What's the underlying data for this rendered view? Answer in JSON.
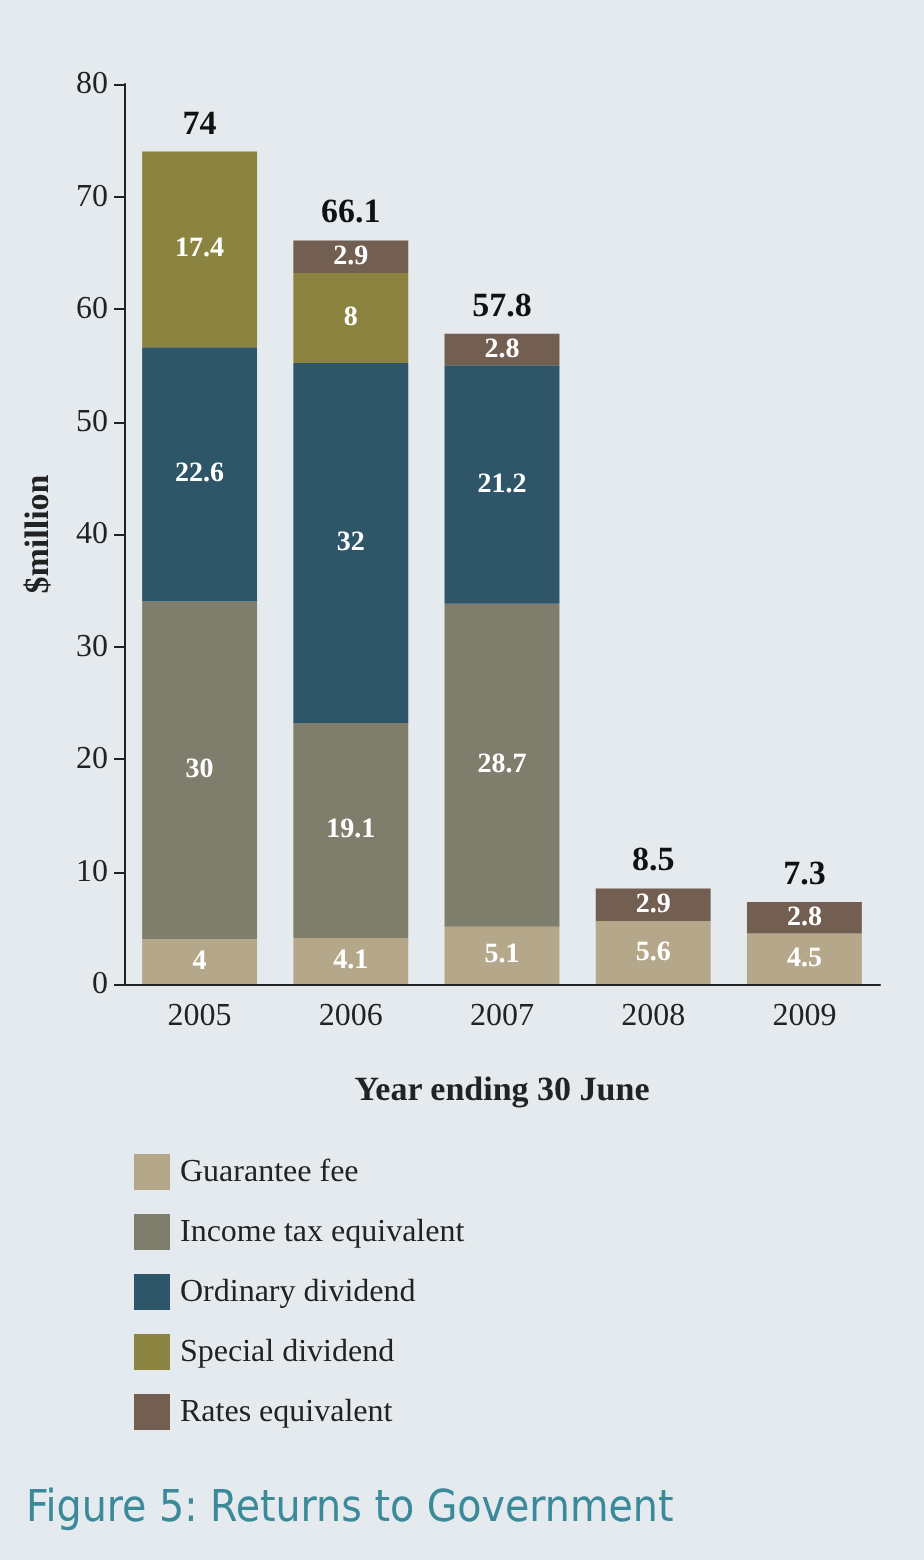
{
  "chart_data": {
    "type": "bar",
    "stacked": true,
    "title": "Figure 5: Returns to Government",
    "xlabel": "Year ending 30 June",
    "ylabel": "$million",
    "categories": [
      "2005",
      "2006",
      "2007",
      "2008",
      "2009"
    ],
    "series": [
      {
        "name": "Guarantee fee",
        "color": "#b5a88a",
        "values": [
          4,
          4.1,
          5.1,
          5.6,
          4.5
        ]
      },
      {
        "name": "Income tax equivalent",
        "color": "#7f7d6c",
        "values": [
          30,
          19.1,
          28.7,
          null,
          null
        ]
      },
      {
        "name": "Ordinary dividend",
        "color": "#2e5568",
        "values": [
          22.6,
          32,
          21.2,
          null,
          null
        ]
      },
      {
        "name": "Special dividend",
        "color": "#8b8440",
        "values": [
          17.4,
          8,
          null,
          null,
          null
        ]
      },
      {
        "name": "Rates equivalent",
        "color": "#735f52",
        "values": [
          null,
          2.9,
          2.8,
          2.9,
          2.8
        ]
      }
    ],
    "ylim": [
      0,
      80
    ],
    "yticks": [
      0,
      10,
      20,
      30,
      40,
      50,
      60,
      70,
      80
    ],
    "grid": false,
    "legend": "bottom",
    "data_labels": true,
    "totals": [
      "74",
      "66.1",
      "57.8",
      "8.5",
      "7.3"
    ]
  }
}
